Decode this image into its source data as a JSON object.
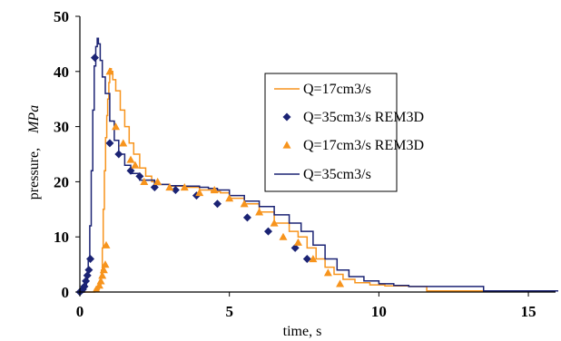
{
  "chart_data": {
    "type": "line",
    "title": "",
    "xlabel": "time, s",
    "ylabel": "pressure,",
    "ylabel_unit": "MPa",
    "xlim": [
      0,
      16
    ],
    "ylim": [
      0,
      50
    ],
    "xticks": [
      0,
      5,
      10,
      15
    ],
    "yticks": [
      0,
      10,
      20,
      30,
      40,
      50
    ],
    "grid": false,
    "legend": "inside-top-right",
    "series": [
      {
        "name": "Q=17cm3/s",
        "kind": "line",
        "color": "#f7941d",
        "points": [
          [
            0,
            0
          ],
          [
            0.5,
            0.5
          ],
          [
            0.65,
            1
          ],
          [
            0.7,
            2
          ],
          [
            0.72,
            4
          ],
          [
            0.75,
            8
          ],
          [
            0.78,
            15
          ],
          [
            0.82,
            22
          ],
          [
            0.86,
            28
          ],
          [
            0.9,
            32
          ],
          [
            0.93,
            35
          ],
          [
            0.97,
            38
          ],
          [
            1.0,
            40.5
          ],
          [
            1.05,
            40
          ],
          [
            1.1,
            38.5
          ],
          [
            1.2,
            36.5
          ],
          [
            1.35,
            33
          ],
          [
            1.5,
            30
          ],
          [
            1.65,
            27
          ],
          [
            1.8,
            25
          ],
          [
            2.0,
            22.5
          ],
          [
            2.2,
            21
          ],
          [
            2.4,
            20
          ],
          [
            2.6,
            19.5
          ],
          [
            3.0,
            19.2
          ],
          [
            3.5,
            19
          ],
          [
            4.0,
            18.5
          ],
          [
            4.4,
            18.2
          ],
          [
            4.7,
            18
          ],
          [
            5.0,
            17
          ],
          [
            5.5,
            16
          ],
          [
            6.0,
            14.5
          ],
          [
            6.5,
            12.5
          ],
          [
            7.0,
            11
          ],
          [
            7.3,
            10
          ],
          [
            7.6,
            8
          ],
          [
            7.9,
            6
          ],
          [
            8.2,
            4.5
          ],
          [
            8.5,
            3.2
          ],
          [
            8.8,
            2.3
          ],
          [
            9.2,
            1.7
          ],
          [
            9.7,
            1.3
          ],
          [
            10.2,
            1.1
          ],
          [
            11.0,
            1.0
          ],
          [
            11.55,
            1.0
          ],
          [
            11.6,
            0.2
          ],
          [
            13.5,
            0.2
          ]
        ]
      },
      {
        "name": "Q=35cm3/s REM3D",
        "kind": "diamond-markers",
        "color": "#1b2374",
        "points": [
          [
            0,
            0
          ],
          [
            0.1,
            0.5
          ],
          [
            0.15,
            1
          ],
          [
            0.2,
            2
          ],
          [
            0.25,
            3
          ],
          [
            0.3,
            4
          ],
          [
            0.35,
            6
          ],
          [
            0.5,
            42.5
          ],
          [
            1.0,
            27
          ],
          [
            1.3,
            25
          ],
          [
            1.7,
            22
          ],
          [
            2.0,
            21
          ],
          [
            2.5,
            19
          ],
          [
            3.2,
            18.5
          ],
          [
            3.9,
            17.5
          ],
          [
            4.6,
            16
          ],
          [
            5.6,
            13.5
          ],
          [
            6.3,
            11
          ],
          [
            7.2,
            8
          ],
          [
            7.6,
            6
          ]
        ]
      },
      {
        "name": "Q=17cm3/s REM3D",
        "kind": "triangle-markers",
        "color": "#f7941d",
        "points": [
          [
            0.55,
            0.5
          ],
          [
            0.65,
            1.2
          ],
          [
            0.7,
            2
          ],
          [
            0.75,
            3
          ],
          [
            0.8,
            4
          ],
          [
            0.85,
            5
          ],
          [
            0.88,
            8.5
          ],
          [
            1.0,
            40
          ],
          [
            1.2,
            30
          ],
          [
            1.45,
            27
          ],
          [
            1.7,
            24
          ],
          [
            1.85,
            23
          ],
          [
            2.15,
            20
          ],
          [
            2.6,
            20
          ],
          [
            3.0,
            19
          ],
          [
            3.5,
            19
          ],
          [
            4.0,
            18
          ],
          [
            4.5,
            18.5
          ],
          [
            5.0,
            17
          ],
          [
            5.5,
            16
          ],
          [
            6.0,
            14.5
          ],
          [
            6.5,
            12.5
          ],
          [
            6.8,
            10
          ],
          [
            7.3,
            9
          ],
          [
            7.8,
            6
          ],
          [
            8.3,
            3.5
          ],
          [
            8.7,
            1.5
          ]
        ]
      },
      {
        "name": "Q=35cm3/s",
        "kind": "line",
        "color": "#1b2374",
        "points": [
          [
            0,
            0
          ],
          [
            0.15,
            1
          ],
          [
            0.22,
            3
          ],
          [
            0.28,
            6
          ],
          [
            0.33,
            12
          ],
          [
            0.38,
            22
          ],
          [
            0.43,
            33
          ],
          [
            0.48,
            41
          ],
          [
            0.53,
            44.5
          ],
          [
            0.58,
            46
          ],
          [
            0.62,
            45
          ],
          [
            0.68,
            42
          ],
          [
            0.75,
            39
          ],
          [
            0.85,
            36
          ],
          [
            1.0,
            31
          ],
          [
            1.15,
            27.5
          ],
          [
            1.3,
            25
          ],
          [
            1.5,
            23
          ],
          [
            1.7,
            21.5
          ],
          [
            2.0,
            20.3
          ],
          [
            2.5,
            19.5
          ],
          [
            3.0,
            19.3
          ],
          [
            3.5,
            19.2
          ],
          [
            4.0,
            19
          ],
          [
            4.3,
            18.8
          ],
          [
            4.6,
            18.5
          ],
          [
            5.0,
            17.5
          ],
          [
            5.5,
            16.5
          ],
          [
            6.0,
            15.5
          ],
          [
            6.5,
            14
          ],
          [
            7.0,
            12.5
          ],
          [
            7.4,
            11
          ],
          [
            7.8,
            8.5
          ],
          [
            8.2,
            6
          ],
          [
            8.6,
            4
          ],
          [
            9.0,
            2.8
          ],
          [
            9.5,
            2.0
          ],
          [
            10.0,
            1.5
          ],
          [
            10.5,
            1.2
          ],
          [
            11.0,
            1.0
          ],
          [
            12.0,
            1.0
          ],
          [
            13.45,
            1.0
          ],
          [
            13.5,
            0.2
          ],
          [
            16,
            0.2
          ]
        ]
      }
    ]
  }
}
